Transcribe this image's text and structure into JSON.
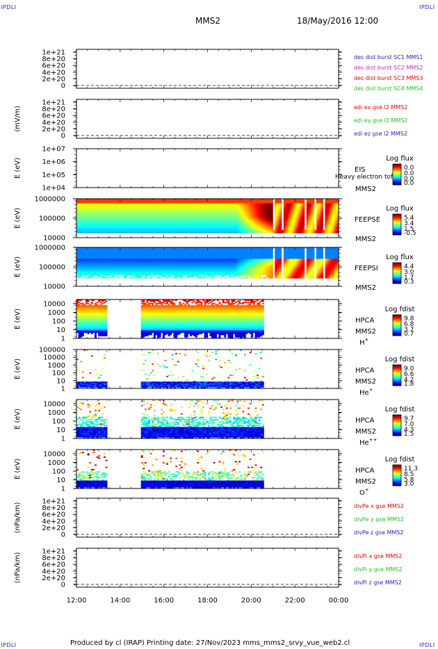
{
  "corner_label": "IPDLI",
  "header": {
    "spacecraft": "MMS2",
    "datetime": "18/May/2016 12:00"
  },
  "footer": {
    "text": "Produced by cl (IRAP)    Printing date: 27/Nov/2023    mms_mms2_srvy_vue_web2.cl"
  },
  "chart_data": [
    {
      "type": "line",
      "ylabel": "",
      "yticks": [
        "0",
        "2e+20",
        "4e+20",
        "6e+20",
        "8e+20",
        "1e+21"
      ],
      "ylim": [
        0,
        1e+21
      ],
      "dashed_zero": true,
      "legend": [
        {
          "text": "des dist burst SC1 MMS1",
          "color": "#2020c8"
        },
        {
          "text": "des dist burst SC2 MMS2",
          "color": "#d020d0"
        },
        {
          "text": "des dist burst SC3 MMS3",
          "color": "#e00000"
        },
        {
          "text": "des dist burst SC4 MMS4",
          "color": "#20c020"
        }
      ]
    },
    {
      "type": "line",
      "ylabel": "(mV/m)",
      "yticks": [
        "0",
        "2e+20",
        "4e+20",
        "6e+20",
        "8e+20",
        "1e+21"
      ],
      "ylim": [
        0,
        1e+21
      ],
      "dashed_zero": true,
      "legend": [
        {
          "text": "edi ex gse l2 MMS2",
          "color": "#e00000"
        },
        {
          "text": "edi ey gse l2 MMS2",
          "color": "#20c020"
        },
        {
          "text": "edi ez gse l2 MMS2",
          "color": "#2020c8"
        }
      ]
    },
    {
      "type": "heatmap",
      "ylabel": "E (eV)",
      "yticks": [
        "1e+04",
        "1e+05",
        "1e+06",
        "1e+07"
      ],
      "log_y": true,
      "ylim": [
        10000.0,
        10000000.0
      ],
      "instrument": "EIS",
      "instrument_extra": "Heavy electron tof",
      "spacecraft": "MMS2",
      "colorbar_title": "Log flux",
      "colorbar_ticks": [
        "0.0",
        "0.0",
        "0.0",
        "0.0"
      ],
      "data_spans": []
    },
    {
      "type": "heatmap",
      "ylabel": "E (eV)",
      "yticks": [
        "10000",
        "100000",
        "1000000"
      ],
      "log_y": true,
      "ylim": [
        10000,
        1000000
      ],
      "instrument": "FEEPSE",
      "spacecraft": "MMS2",
      "colorbar_title": "Log flux",
      "colorbar_ticks": [
        "5.4",
        "3.4",
        "1.5",
        "-0.5"
      ],
      "data_spans": [
        [
          12.0,
          24.0
        ]
      ]
    },
    {
      "type": "heatmap",
      "ylabel": "E (eV)",
      "yticks": [
        "10000",
        "100000",
        "1000000"
      ],
      "log_y": true,
      "ylim": [
        10000,
        1000000
      ],
      "instrument": "FEEPSI",
      "spacecraft": "MMS2",
      "colorbar_title": "Log flux",
      "colorbar_ticks": [
        "4.4",
        "3.0",
        "1.7",
        "0.3"
      ],
      "data_spans": [
        [
          12.0,
          24.0
        ]
      ]
    },
    {
      "type": "heatmap",
      "ylabel": "E (eV)",
      "yticks": [
        "1",
        "10",
        "100",
        "1000",
        "10000"
      ],
      "log_y": true,
      "ylim": [
        1,
        30000
      ],
      "instrument": "HPCA",
      "spacecraft": "MMS2",
      "species": "H",
      "charge": "+",
      "colorbar_title": "Log fdist",
      "colorbar_ticks": [
        "9.8",
        "6.8",
        "3.7",
        "0.7"
      ],
      "data_spans": [
        [
          12.0,
          13.33
        ],
        [
          14.95,
          20.55
        ]
      ]
    },
    {
      "type": "heatmap",
      "ylabel": "E (eV)",
      "yticks": [
        "1",
        "10",
        "100",
        "1000",
        "10000",
        "100000"
      ],
      "log_y": true,
      "ylim": [
        1,
        100000
      ],
      "instrument": "HPCA",
      "spacecraft": "MMS2",
      "species": "He",
      "charge": "+",
      "colorbar_title": "Log fdist",
      "colorbar_ticks": [
        "9.0",
        "6.6",
        "4.2",
        "1.8"
      ],
      "data_spans": [
        [
          12.0,
          13.33
        ],
        [
          14.95,
          20.55
        ]
      ]
    },
    {
      "type": "heatmap",
      "ylabel": "E (eV)",
      "yticks": [
        "1",
        "10",
        "100",
        "1000",
        "10000"
      ],
      "log_y": true,
      "ylim": [
        1,
        30000
      ],
      "instrument": "HPCA",
      "spacecraft": "MMS2",
      "species": "He",
      "charge": "++",
      "colorbar_title": "Log fdist",
      "colorbar_ticks": [
        "9.7",
        "7.0",
        "4.3",
        "1.5"
      ],
      "data_spans": [
        [
          12.0,
          13.33
        ],
        [
          14.95,
          20.55
        ]
      ]
    },
    {
      "type": "heatmap",
      "ylabel": "E (eV)",
      "yticks": [
        "1",
        "10",
        "100",
        "1000",
        "10000"
      ],
      "log_y": true,
      "ylim": [
        1,
        30000
      ],
      "instrument": "HPCA",
      "spacecraft": "MMS2",
      "species": "O",
      "charge": "+",
      "colorbar_title": "Log fdist",
      "colorbar_ticks": [
        "11.3",
        "8.5",
        "5.8",
        "3.0"
      ],
      "data_spans": [
        [
          12.0,
          13.33
        ],
        [
          14.95,
          20.55
        ]
      ]
    },
    {
      "type": "line",
      "ylabel": "(nPa/km)",
      "yticks": [
        "0",
        "2e+20",
        "4e+20",
        "6e+20",
        "8e+20",
        "1e+21"
      ],
      "ylim": [
        0,
        1e+21
      ],
      "dashed_zero": true,
      "legend": [
        {
          "text": "divPe x gse MMS2",
          "color": "#e00000"
        },
        {
          "text": "divPe y gse MMS2",
          "color": "#20c020"
        },
        {
          "text": "divPe z gse MMS2",
          "color": "#2020c8"
        }
      ]
    },
    {
      "type": "line",
      "ylabel": "(nPa/km)",
      "yticks": [
        "0",
        "2e+20",
        "4e+20",
        "6e+20",
        "8e+20",
        "1e+21"
      ],
      "ylim": [
        0,
        1e+21
      ],
      "dashed_zero": true,
      "legend": [
        {
          "text": "divPi x gse MMS2",
          "color": "#e00000"
        },
        {
          "text": "divPi y gse MMS2",
          "color": "#20c020"
        },
        {
          "text": "divPi z gse MMS2",
          "color": "#2020c8"
        }
      ]
    }
  ],
  "time_axis": {
    "range_hours": [
      12,
      24
    ],
    "labels": [
      "12:00",
      "14:00",
      "16:00",
      "18:00",
      "20:00",
      "22:00",
      "00:00"
    ]
  }
}
